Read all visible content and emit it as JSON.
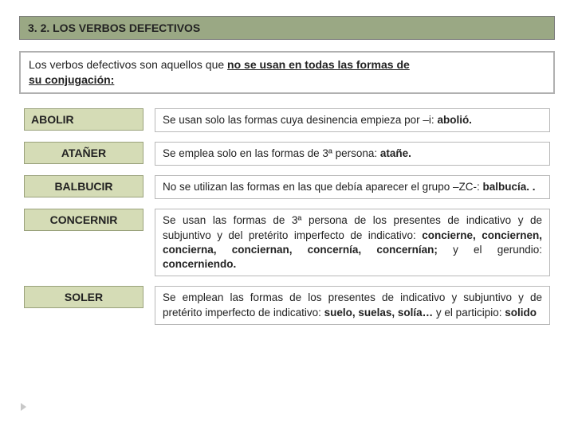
{
  "header": {
    "title": "3. 2. LOS VERBOS DEFECTIVOS"
  },
  "intro": {
    "prefix": "Los verbos defectivos son aquellos que ",
    "bold_underline_1": "no se usan en todas las formas de",
    "bold_underline_2": "su conjugación:"
  },
  "rows": [
    {
      "verb": "ABOLIR",
      "prefix": "Se usan solo las formas cuya desinencia empieza por –i: ",
      "bold": "abolió."
    },
    {
      "verb": "ATAÑER",
      "prefix": "Se emplea solo en las formas de 3ª persona: ",
      "bold": "atañe."
    },
    {
      "verb": "BALBUCIR",
      "prefix": "No se utilizan las formas en las que debía aparecer el grupo –ZC-: ",
      "bold": "balbucía. ."
    },
    {
      "verb": "CONCERNIR",
      "prefix": "Se usan las formas de 3ª persona de los presentes de indicativo y de subjuntivo y del pretérito imperfecto de indicativo: ",
      "bold1": "concierne, conciernen, concierna, conciernan, concernía, concernían;",
      "mid": " y el gerundio: ",
      "bold2": "concerniendo."
    },
    {
      "verb": "SOLER",
      "prefix": "Se emplean las formas de los presentes de indicativo y subjuntivo y de pretérito imperfecto de indicativo: ",
      "bold1": "suelo, suelas, solía…",
      "mid": " y el participio: ",
      "bold2": "solido"
    }
  ],
  "colors": {
    "header_bg": "#9aa884",
    "verb_bg": "#d5dcb6",
    "verb_border": "#9aa27c",
    "box_border": "#b0b0b0",
    "text": "#222222",
    "marker": "#c8c8c8"
  }
}
